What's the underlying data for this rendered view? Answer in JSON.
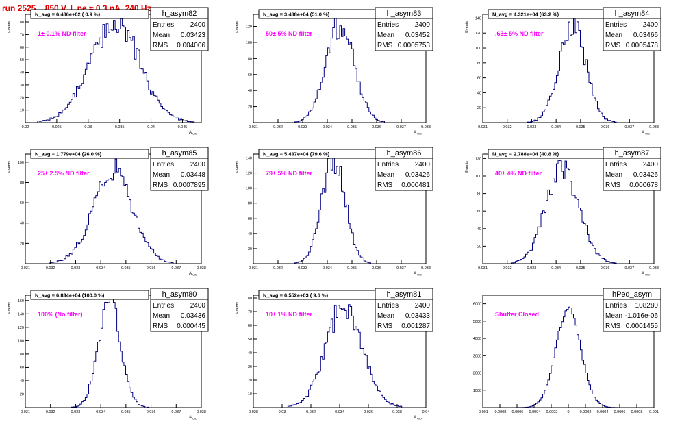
{
  "page_title": "run 2525,   850 V, I_pe ≈ 0.3 nA, 240 Hz",
  "colors": {
    "title": "#e00000",
    "histogram": "#00007f",
    "annotation": "#ff00ff",
    "axes": "#000000",
    "background": "#ffffff"
  },
  "chart_data": [
    {
      "type": "bar",
      "name": "h_asym82",
      "ylabel": "Events",
      "xlabel": "A UID",
      "headline": "N_avg = 6.486e+02 ( 0.9 %)",
      "annotation": "1± 0.1% ND filter",
      "stats": {
        "entries_label": "Entries",
        "entries": "2400",
        "mean_label": "Mean",
        "mean": "0.03423",
        "rms_label": "RMS",
        "rms": "0.004006"
      },
      "xlim": [
        0.02,
        0.048
      ],
      "ylim": [
        0,
        86
      ],
      "x_ticks": [
        0.02,
        0.025,
        0.03,
        0.035,
        0.04,
        0.045
      ],
      "x_tick_labels": [
        "0.02",
        "0.025",
        "0.03",
        "0.035",
        "0.04",
        "0.045"
      ],
      "y_ticks": [
        10,
        20,
        30,
        40,
        50,
        60,
        70,
        80
      ],
      "y_tick_labels": [
        "10",
        "20",
        "30",
        "40",
        "50",
        "60",
        "70",
        "80"
      ],
      "distribution": {
        "mean": 0.03423,
        "rms": 0.004006,
        "peak": 78
      }
    },
    {
      "type": "bar",
      "name": "h_asym83",
      "ylabel": "Events",
      "xlabel": "A UID",
      "headline": "N_avg = 3.488e+04 (51.0 %)",
      "annotation": "50± 5% ND filter",
      "stats": {
        "entries_label": "Entries",
        "entries": "2400",
        "mean_label": "Mean",
        "mean": "0.03452",
        "rms_label": "RMS",
        "rms": "0.0005753"
      },
      "xlim": [
        0.031,
        0.038
      ],
      "ylim": [
        0,
        135
      ],
      "x_ticks": [
        0.031,
        0.032,
        0.033,
        0.034,
        0.035,
        0.036,
        0.037,
        0.038
      ],
      "x_tick_labels": [
        "0.031",
        "0.032",
        "0.033",
        "0.034",
        "0.035",
        "0.036",
        "0.037",
        "0.038"
      ],
      "y_ticks": [
        20,
        40,
        60,
        80,
        100,
        120
      ],
      "y_tick_labels": [
        "20",
        "40",
        "60",
        "80",
        "100",
        "120"
      ],
      "distribution": {
        "mean": 0.03452,
        "rms": 0.0005753,
        "peak": 122
      }
    },
    {
      "type": "bar",
      "name": "h_asym84",
      "ylabel": "Events",
      "xlabel": "A UID",
      "headline": "N_avg = 4.321e+04 (63.2 %)",
      "annotation": ".63± 5% ND filter",
      "stats": {
        "entries_label": "Entries",
        "entries": "2400",
        "mean_label": "Mean",
        "mean": "0.03466",
        "rms_label": "RMS",
        "rms": "0.0005478"
      },
      "xlim": [
        0.031,
        0.038
      ],
      "ylim": [
        0,
        145
      ],
      "x_ticks": [
        0.031,
        0.032,
        0.033,
        0.034,
        0.035,
        0.036,
        0.037,
        0.038
      ],
      "x_tick_labels": [
        "0.031",
        "0.032",
        "0.033",
        "0.034",
        "0.035",
        "0.036",
        "0.037",
        "0.038"
      ],
      "y_ticks": [
        20,
        40,
        60,
        80,
        100,
        120,
        140
      ],
      "y_tick_labels": [
        "20",
        "40",
        "60",
        "80",
        "100",
        "120",
        "140"
      ],
      "distribution": {
        "mean": 0.03466,
        "rms": 0.0005478,
        "peak": 132
      }
    },
    {
      "type": "bar",
      "name": "h_asym85",
      "ylabel": "Events",
      "xlabel": "A UID",
      "headline": "N_avg = 1.779e+04 (26.0 %)",
      "annotation": "25± 2.5% ND filter",
      "stats": {
        "entries_label": "Entries",
        "entries": "2400",
        "mean_label": "Mean",
        "mean": "0.03448",
        "rms_label": "RMS",
        "rms": "0.0007895"
      },
      "xlim": [
        0.031,
        0.038
      ],
      "ylim": [
        0,
        108
      ],
      "x_ticks": [
        0.031,
        0.032,
        0.033,
        0.034,
        0.035,
        0.036,
        0.037,
        0.038
      ],
      "x_tick_labels": [
        "0.031",
        "0.032",
        "0.033",
        "0.034",
        "0.035",
        "0.036",
        "0.037",
        "0.038"
      ],
      "y_ticks": [
        20,
        40,
        60,
        80,
        100
      ],
      "y_tick_labels": [
        "20",
        "40",
        "60",
        "80",
        "100"
      ],
      "distribution": {
        "mean": 0.03448,
        "rms": 0.0007895,
        "peak": 92
      }
    },
    {
      "type": "bar",
      "name": "h_asym86",
      "ylabel": "Events",
      "xlabel": "A UID",
      "headline": "N_avg = 5.437e+04 (79.6 %)",
      "annotation": "79± 5% ND filter",
      "stats": {
        "entries_label": "Entries",
        "entries": "2400",
        "mean_label": "Mean",
        "mean": "0.03426",
        "rms_label": "RMS",
        "rms": "0.000481"
      },
      "xlim": [
        0.031,
        0.038
      ],
      "ylim": [
        0,
        145
      ],
      "x_ticks": [
        0.031,
        0.032,
        0.033,
        0.034,
        0.035,
        0.036,
        0.037,
        0.038
      ],
      "x_tick_labels": [
        "0.031",
        "0.032",
        "0.033",
        "0.034",
        "0.035",
        "0.036",
        "0.037",
        "0.038"
      ],
      "y_ticks": [
        20,
        40,
        60,
        80,
        100,
        120,
        140
      ],
      "y_tick_labels": [
        "20",
        "40",
        "60",
        "80",
        "100",
        "120",
        "140"
      ],
      "distribution": {
        "mean": 0.03426,
        "rms": 0.000481,
        "peak": 136
      }
    },
    {
      "type": "bar",
      "name": "h_asym87",
      "ylabel": "Events",
      "xlabel": "A UID",
      "headline": "N_avg = 2.788e+04 (40.8 %)",
      "annotation": "40± 4% ND filter",
      "stats": {
        "entries_label": "Entries",
        "entries": "2400",
        "mean_label": "Mean",
        "mean": "0.03426",
        "rms_label": "RMS",
        "rms": "0.000678"
      },
      "xlim": [
        0.031,
        0.038
      ],
      "ylim": [
        0,
        125
      ],
      "x_ticks": [
        0.031,
        0.032,
        0.033,
        0.034,
        0.035,
        0.036,
        0.037,
        0.038
      ],
      "x_tick_labels": [
        "0.031",
        "0.032",
        "0.033",
        "0.034",
        "0.035",
        "0.036",
        "0.037",
        "0.038"
      ],
      "y_ticks": [
        20,
        40,
        60,
        80,
        100,
        120
      ],
      "y_tick_labels": [
        "20",
        "40",
        "60",
        "80",
        "100",
        "120"
      ],
      "distribution": {
        "mean": 0.03426,
        "rms": 0.000678,
        "peak": 110
      }
    },
    {
      "type": "bar",
      "name": "h_asym80",
      "ylabel": "Events",
      "xlabel": "A UID",
      "headline": "N_avg = 6.834e+04 (100.0 %)",
      "annotation": "100% (No filter)",
      "stats": {
        "entries_label": "Entries",
        "entries": "2400",
        "mean_label": "Mean",
        "mean": "0.03436",
        "rms_label": "RMS",
        "rms": "0.000445"
      },
      "xlim": [
        0.031,
        0.038
      ],
      "ylim": [
        0,
        168
      ],
      "x_ticks": [
        0.031,
        0.032,
        0.033,
        0.034,
        0.035,
        0.036,
        0.037,
        0.038
      ],
      "x_tick_labels": [
        "0.031",
        "0.032",
        "0.033",
        "0.034",
        "0.035",
        "0.036",
        "0.037",
        "0.038"
      ],
      "y_ticks": [
        20,
        40,
        60,
        80,
        100,
        120,
        140,
        160
      ],
      "y_tick_labels": [
        "20",
        "40",
        "60",
        "80",
        "100",
        "120",
        "140",
        "160"
      ],
      "distribution": {
        "mean": 0.03436,
        "rms": 0.000445,
        "peak": 158
      }
    },
    {
      "type": "bar",
      "name": "h_asym81",
      "ylabel": "Events",
      "xlabel": "A UID",
      "headline": "N_avg = 6.552e+03 ( 9.6 %)",
      "annotation": "10± 1% ND filter",
      "stats": {
        "entries_label": "Entries",
        "entries": "2400",
        "mean_label": "Mean",
        "mean": "0.03433",
        "rms_label": "RMS",
        "rms": "0.001287"
      },
      "xlim": [
        0.028,
        0.04
      ],
      "ylim": [
        0,
        82
      ],
      "x_ticks": [
        0.028,
        0.03,
        0.032,
        0.034,
        0.036,
        0.038,
        0.04
      ],
      "x_tick_labels": [
        "0.028",
        "0.03",
        "0.032",
        "0.034",
        "0.036",
        "0.038",
        "0.04"
      ],
      "y_ticks": [
        10,
        20,
        30,
        40,
        50,
        60,
        70,
        80
      ],
      "y_tick_labels": [
        "10",
        "20",
        "30",
        "40",
        "50",
        "60",
        "70",
        "80"
      ],
      "distribution": {
        "mean": 0.03433,
        "rms": 0.001287,
        "peak": 73
      }
    },
    {
      "type": "bar",
      "name": "hPed_asym",
      "ylabel": "",
      "xlabel": "",
      "headline": "",
      "annotation": "Shutter Closed",
      "stats": {
        "entries_label": "Entries",
        "entries": "108280",
        "mean_label": "Mean",
        "mean": "-1.016e-06",
        "rms_label": "RMS",
        "rms": "0.0001455"
      },
      "xlim": [
        -0.001,
        0.001
      ],
      "ylim": [
        0,
        6500
      ],
      "x_ticks": [
        -0.001,
        -0.0008,
        -0.0006,
        -0.0004,
        -0.0002,
        0,
        0.0002,
        0.0004,
        0.0006,
        0.0008,
        0.001
      ],
      "x_tick_labels": [
        "-0.001",
        "-0.0008",
        "-0.0006",
        "-0.0004",
        "-0.0002",
        "0",
        "0.0002",
        "0.0004",
        "0.0006",
        "0.0008",
        "0.001"
      ],
      "y_ticks": [
        1000,
        2000,
        3000,
        4000,
        5000,
        6000
      ],
      "y_tick_labels": [
        "1000",
        "2000",
        "3000",
        "4000",
        "5000",
        "6000"
      ],
      "distribution": {
        "mean": -1.016e-06,
        "rms": 0.0001455,
        "peak": 5700
      }
    }
  ]
}
